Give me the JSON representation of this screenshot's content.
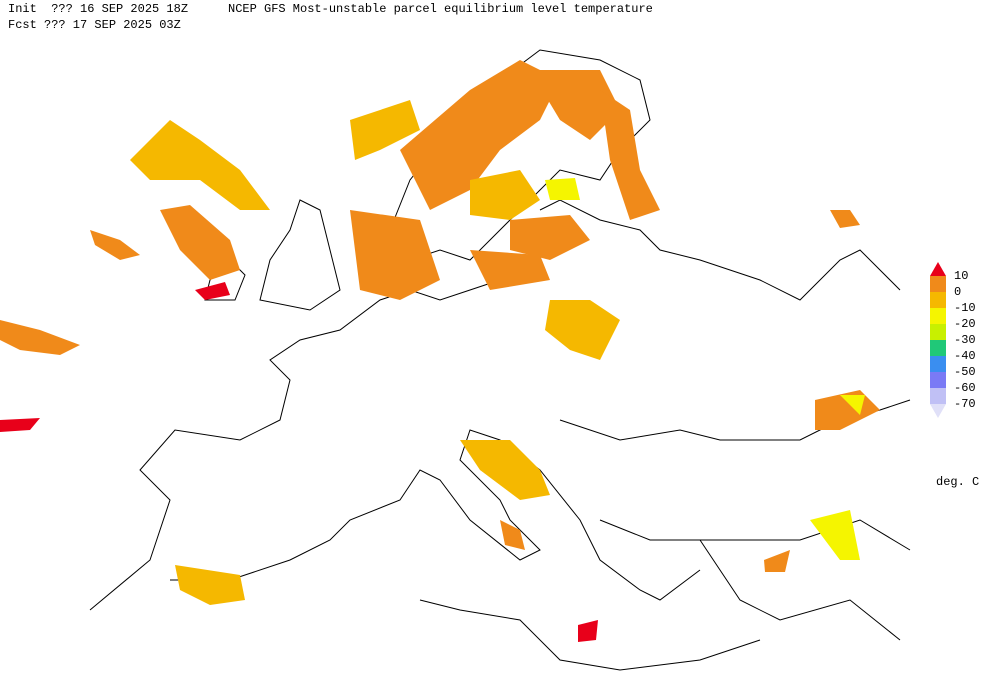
{
  "header": {
    "init": "Init  ??? 16 SEP 2025 18Z",
    "title": "NCEP GFS Most-unstable parcel equilibrium level temperature",
    "fcst": "Fcst ??? 17 SEP 2025 03Z"
  },
  "legend": {
    "levels": [
      10,
      0,
      -10,
      -20,
      -30,
      -40,
      -50,
      -60,
      -70
    ],
    "colors": [
      "#e8001a",
      "#f08a1a",
      "#f5b800",
      "#f5f500",
      "#c8f000",
      "#20c878",
      "#3a8ef0",
      "#7a7af5",
      "#c0c0f5",
      "#e0e0f8"
    ],
    "unit": "deg. C"
  }
}
